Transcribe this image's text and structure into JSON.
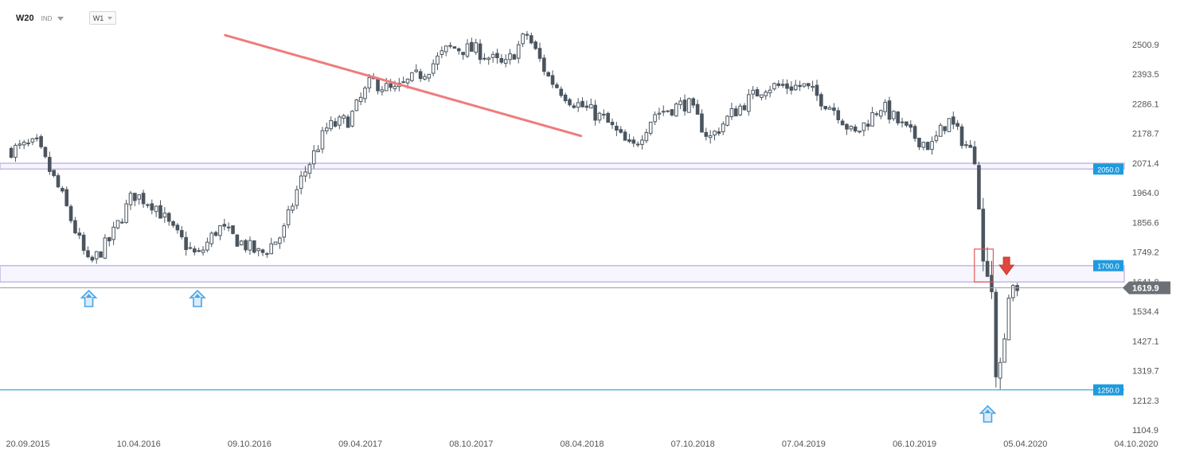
{
  "toolbar": {
    "symbol": "W20",
    "instrument_type": "IND",
    "timeframe": "W1"
  },
  "chart_data": {
    "type": "candlestick",
    "interval": "W1",
    "y_axis": {
      "ticks": [
        "2500.9",
        "2393.5",
        "2286.1",
        "2178.7",
        "2071.4",
        "1964.0",
        "1856.6",
        "1749.2",
        "1641.8",
        "1534.4",
        "1427.1",
        "1319.7",
        "1212.3",
        "1104.9"
      ],
      "range": [
        1104.9,
        2500.9
      ]
    },
    "x_axis": {
      "ticks": [
        "20.09.2015",
        "10.04.2016",
        "09.10.2016",
        "09.04.2017",
        "08.10.2017",
        "08.04.2018",
        "07.10.2018",
        "07.04.2019",
        "06.10.2019",
        "05.04.2020",
        "04.10.2020"
      ]
    },
    "last_price": "1619.9",
    "levels": [
      {
        "label": "2050.0",
        "value": 2050.0,
        "zone": [
          2050,
          2071
        ]
      },
      {
        "label": "1700.0",
        "value": 1700.0,
        "zone": [
          1641,
          1700
        ]
      },
      {
        "label": "1250.0",
        "value": 1250.0,
        "zone": null
      }
    ],
    "trendline": {
      "from": [
        1.78,
        2535
      ],
      "to": [
        4.99,
        2170
      ]
    },
    "colors": {
      "candle": "#4a555f",
      "trendline": "#ef7c7c",
      "zone_border": "#c4b9e4",
      "zone_fill": "#f7f5fd",
      "support_line": "#2aa0d6",
      "level_label": "#1e9bde",
      "price_label": "#6b7177",
      "up_arrow": "#4aa4e6",
      "down_arrow": "#e0473d",
      "box": "#e05a5a"
    },
    "annotations": {
      "up_arrows_at": [
        0.55,
        1.53,
        8.66
      ],
      "down_arrow_at": [
        8.83,
        1700
      ],
      "highlight_box": {
        "x": [
          8.54,
          8.71
        ],
        "y": [
          1641,
          1760
        ]
      }
    },
    "keypoints": [
      [
        -0.15,
        2120
      ],
      [
        0.08,
        2140
      ],
      [
        0.3,
        1960
      ],
      [
        0.55,
        1700
      ],
      [
        0.75,
        1800
      ],
      [
        0.95,
        1960
      ],
      [
        1.15,
        1920
      ],
      [
        1.3,
        1830
      ],
      [
        1.53,
        1730
      ],
      [
        1.72,
        1840
      ],
      [
        1.9,
        1790
      ],
      [
        2.1,
        1740
      ],
      [
        2.3,
        1815
      ],
      [
        2.45,
        2000
      ],
      [
        2.7,
        2200
      ],
      [
        2.9,
        2230
      ],
      [
        3.1,
        2370
      ],
      [
        3.3,
        2330
      ],
      [
        3.6,
        2410
      ],
      [
        3.8,
        2490
      ],
      [
        4.05,
        2480
      ],
      [
        4.3,
        2420
      ],
      [
        4.5,
        2540
      ],
      [
        4.7,
        2380
      ],
      [
        4.9,
        2300
      ],
      [
        5.2,
        2230
      ],
      [
        5.45,
        2120
      ],
      [
        5.65,
        2250
      ],
      [
        5.95,
        2290
      ],
      [
        6.15,
        2160
      ],
      [
        6.35,
        2250
      ],
      [
        6.65,
        2350
      ],
      [
        7.0,
        2350
      ],
      [
        7.3,
        2260
      ],
      [
        7.45,
        2170
      ],
      [
        7.7,
        2280
      ],
      [
        7.95,
        2180
      ],
      [
        8.15,
        2130
      ],
      [
        8.3,
        2230
      ],
      [
        8.55,
        2090
      ],
      [
        8.61,
        1730
      ],
      [
        8.7,
        1600
      ],
      [
        8.74,
        1250
      ],
      [
        8.79,
        1400
      ],
      [
        8.85,
        1560
      ],
      [
        8.9,
        1620
      ],
      [
        8.93,
        1618
      ]
    ]
  }
}
